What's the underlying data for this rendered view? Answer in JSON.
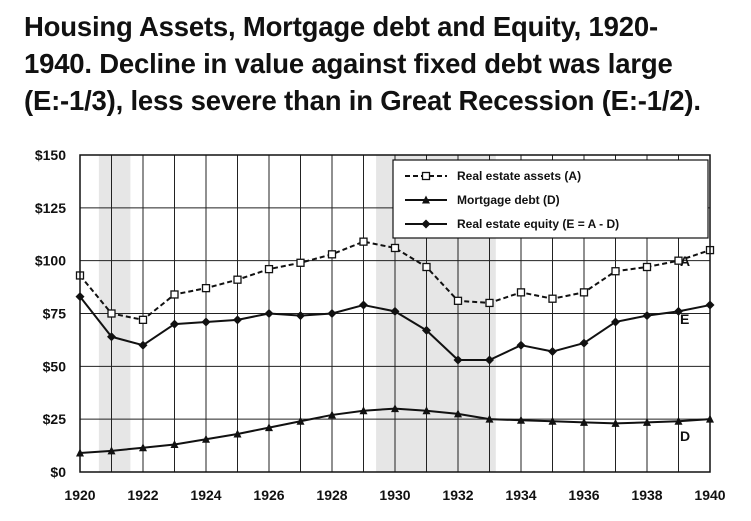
{
  "title_lines": [
    "Housing Assets, Mortgage debt and Equity, 1920-",
    "1940. Decline in value against fixed debt was large",
    "(E:-1/3), less severe than in Great Recession (E:-1/2)."
  ],
  "chart_data": {
    "type": "line",
    "x": [
      1920,
      1921,
      1922,
      1923,
      1924,
      1925,
      1926,
      1927,
      1928,
      1929,
      1930,
      1931,
      1932,
      1933,
      1934,
      1935,
      1936,
      1937,
      1938,
      1939,
      1940
    ],
    "xticks": [
      1920,
      1922,
      1924,
      1926,
      1928,
      1930,
      1932,
      1934,
      1936,
      1938,
      1940
    ],
    "xtick_labels": [
      "1920",
      "1922",
      "1924",
      "1926",
      "1928",
      "1930",
      "1932",
      "1934",
      "1936",
      "1938",
      "1940"
    ],
    "yticks": [
      0,
      25,
      50,
      75,
      100,
      125,
      150
    ],
    "ytick_labels": [
      "$0",
      "$25",
      "$50",
      "$75",
      "$100",
      "$125",
      "$150"
    ],
    "xlim": [
      1920,
      1940
    ],
    "ylim": [
      0,
      150
    ],
    "grid": true,
    "shaded_periods": [
      [
        1920.6,
        1921.6
      ],
      [
        1929.4,
        1933.2
      ]
    ],
    "legend_position": "top-right",
    "series": [
      {
        "name": "Real estate assets (A)",
        "end_label": "A",
        "style": "dashed-open-square",
        "values": [
          93,
          75,
          72,
          84,
          87,
          91,
          96,
          99,
          103,
          109,
          106,
          97,
          81,
          80,
          85,
          82,
          85,
          95,
          97,
          100,
          105
        ]
      },
      {
        "name": "Mortgage debt (D)",
        "end_label": "D",
        "style": "solid-triangle",
        "values": [
          9,
          10,
          11.5,
          13,
          15.5,
          18,
          21,
          24,
          27,
          29,
          30,
          29,
          27.5,
          25,
          24.5,
          24,
          23.5,
          23,
          23.5,
          24,
          25
        ]
      },
      {
        "name": "Real estate equity (E = A - D)",
        "end_label": "E",
        "style": "solid-diamond",
        "values": [
          83,
          64,
          60,
          70,
          71,
          72,
          75,
          74,
          75,
          79,
          76,
          67,
          53,
          53,
          60,
          57,
          61,
          71,
          74,
          76,
          79
        ]
      }
    ]
  }
}
